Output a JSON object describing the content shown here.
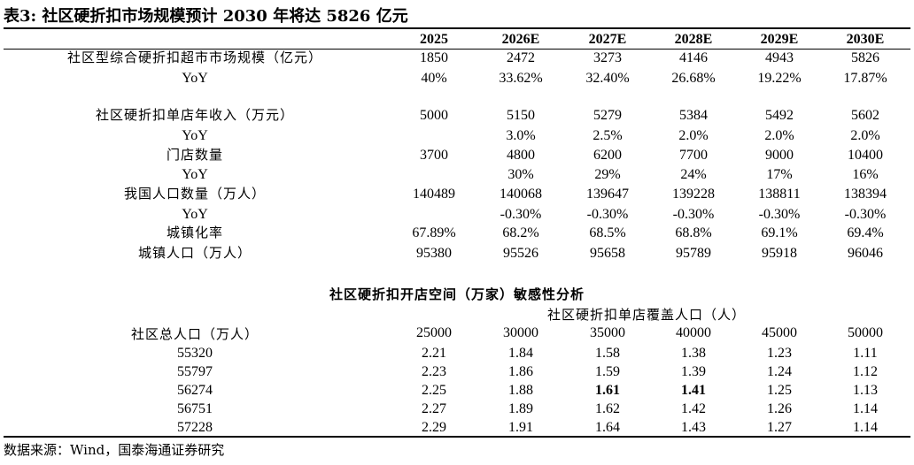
{
  "title": "表3:  社区硬折扣市场规模预计 2030 年将达 5826 亿元",
  "header": [
    "2025",
    "2026E",
    "2027E",
    "2028E",
    "2029E",
    "2030E"
  ],
  "rows": [
    {
      "label": "社区型综合硬折扣超市市场规模（亿元）",
      "values": [
        "1850",
        "2472",
        "3273",
        "4146",
        "4943",
        "5826"
      ]
    },
    {
      "label": "YoY",
      "values": [
        "40%",
        "33.62%",
        "32.40%",
        "26.68%",
        "19.22%",
        "17.87%"
      ]
    },
    {
      "label": "社区硬折扣单店年收入（万元）",
      "values": [
        "5000",
        "5150",
        "5279",
        "5384",
        "5492",
        "5602"
      ]
    },
    {
      "label": "YoY",
      "values": [
        "",
        "3.0%",
        "2.5%",
        "2.0%",
        "2.0%",
        "2.0%"
      ]
    },
    {
      "label": "门店数量",
      "values": [
        "3700",
        "4800",
        "6200",
        "7700",
        "9000",
        "10400"
      ]
    },
    {
      "label": "YoY",
      "values": [
        "",
        "30%",
        "29%",
        "24%",
        "17%",
        "16%"
      ]
    },
    {
      "label": "我国人口数量（万人）",
      "values": [
        "140489",
        "140068",
        "139647",
        "139228",
        "138811",
        "138394"
      ]
    },
    {
      "label": "YoY",
      "values": [
        "",
        "-0.30%",
        "-0.30%",
        "-0.30%",
        "-0.30%",
        "-0.30%"
      ]
    },
    {
      "label": "城镇化率",
      "values": [
        "67.89%",
        "68.2%",
        "68.5%",
        "68.8%",
        "69.1%",
        "69.4%"
      ]
    },
    {
      "label": "城镇人口（万人）",
      "values": [
        "95380",
        "95526",
        "95658",
        "95789",
        "95918",
        "96046"
      ]
    }
  ],
  "sensitivity": {
    "title": "社区硬折扣开店空间（万家）敏感性分析",
    "col_title": "社区硬折扣单店覆盖人口（人）",
    "row_title": "社区总人口（万人）",
    "columns": [
      "25000",
      "30000",
      "35000",
      "40000",
      "45000",
      "50000"
    ],
    "rows": [
      {
        "label": "55320",
        "values": [
          "2.21",
          "1.84",
          "1.58",
          "1.38",
          "1.23",
          "1.11"
        ]
      },
      {
        "label": "55797",
        "values": [
          "2.23",
          "1.86",
          "1.59",
          "1.39",
          "1.24",
          "1.12"
        ]
      },
      {
        "label": "56274",
        "values": [
          "2.25",
          "1.88",
          "1.61",
          "1.41",
          "1.25",
          "1.13"
        ]
      },
      {
        "label": "56751",
        "values": [
          "2.27",
          "1.89",
          "1.62",
          "1.42",
          "1.26",
          "1.14"
        ]
      },
      {
        "label": "57228",
        "values": [
          "2.29",
          "1.91",
          "1.64",
          "1.43",
          "1.27",
          "1.14"
        ]
      }
    ]
  },
  "source": "数据来源：Wind，国泰海通证券研究"
}
